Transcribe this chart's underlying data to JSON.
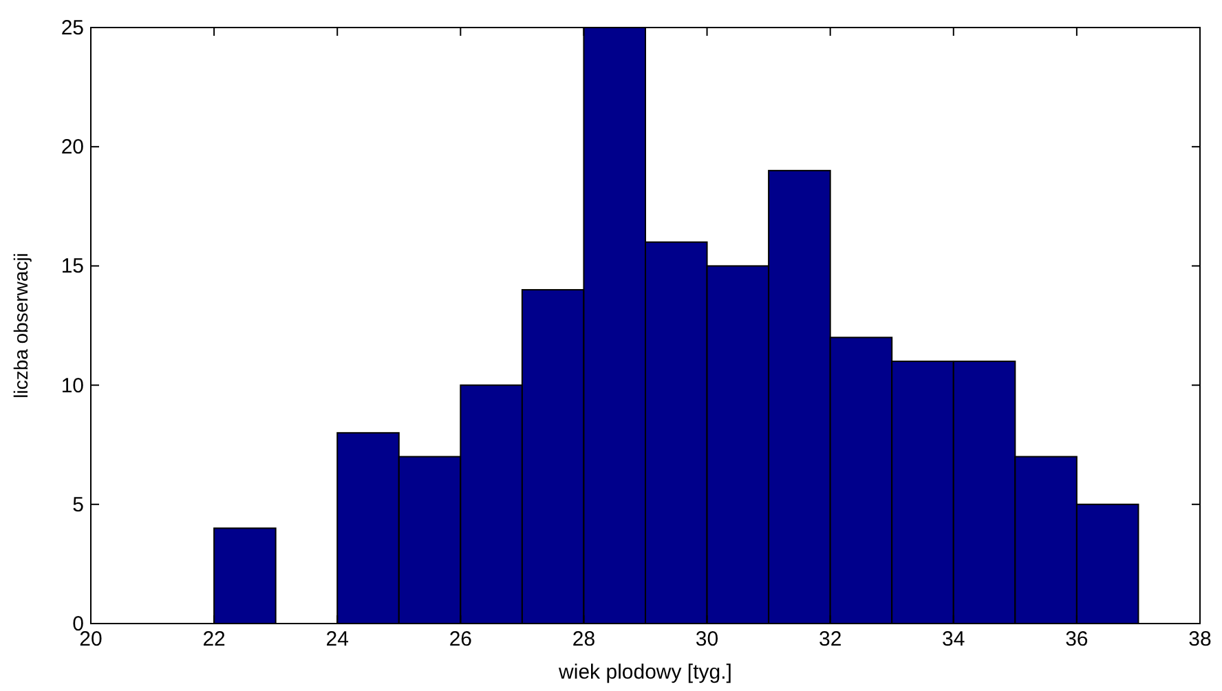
{
  "chart_data": {
    "type": "histogram",
    "xlabel": "wiek plodowy [tyg.]",
    "ylabel": "liczba obserwacji",
    "bins": [
      22,
      23,
      24,
      25,
      26,
      27,
      28,
      29,
      30,
      31,
      32,
      33,
      34,
      35,
      36,
      37
    ],
    "values": [
      4,
      0,
      8,
      7,
      10,
      14,
      25,
      16,
      15,
      19,
      12,
      11,
      11,
      7,
      5
    ],
    "color": "#00008b",
    "xlim": [
      20,
      38
    ],
    "xticks": [
      20,
      22,
      24,
      26,
      28,
      30,
      32,
      34,
      36,
      38
    ],
    "ylim": [
      0,
      25
    ],
    "yticks": [
      0,
      5,
      10,
      15,
      20,
      25
    ]
  }
}
